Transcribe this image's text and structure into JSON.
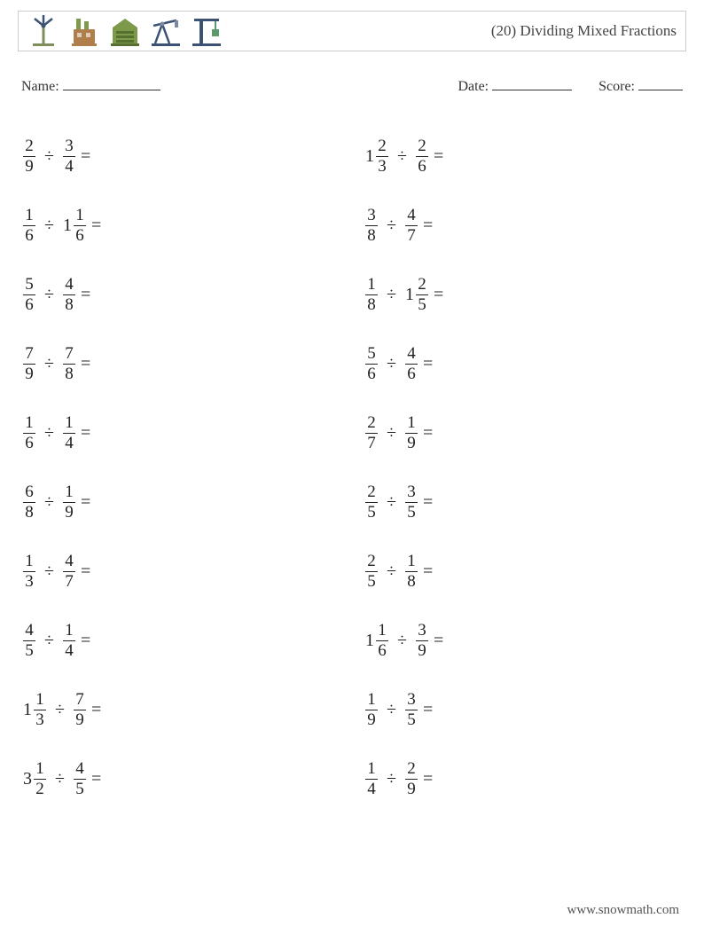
{
  "header": {
    "title": "(20) Dividing Mixed Fractions",
    "icons": [
      {
        "name": "windturbine-icon",
        "primary": "#7d8e5c",
        "accent": "#3b5275"
      },
      {
        "name": "factory-icon",
        "primary": "#b07e4a",
        "accent": "#7d9a4a"
      },
      {
        "name": "warehouse-icon",
        "primary": "#7d9a4a",
        "accent": "#55702f"
      },
      {
        "name": "oilpump-icon",
        "primary": "#3b5275",
        "accent": "#7a8aa3"
      },
      {
        "name": "crane-icon",
        "primary": "#3b5275",
        "accent": "#5c9a6c"
      }
    ]
  },
  "meta": {
    "name_label": "Name:",
    "date_label": "Date:",
    "score_label": "Score:",
    "name_blank_width": 110,
    "date_blank_width": 90,
    "score_blank_width": 50
  },
  "layout": {
    "op_symbol": "÷",
    "eq_symbol": "="
  },
  "problems": {
    "left": [
      {
        "a": {
          "whole": null,
          "num": 2,
          "den": 9
        },
        "b": {
          "whole": null,
          "num": 3,
          "den": 4
        }
      },
      {
        "a": {
          "whole": null,
          "num": 1,
          "den": 6
        },
        "b": {
          "whole": 1,
          "num": 1,
          "den": 6
        }
      },
      {
        "a": {
          "whole": null,
          "num": 5,
          "den": 6
        },
        "b": {
          "whole": null,
          "num": 4,
          "den": 8
        }
      },
      {
        "a": {
          "whole": null,
          "num": 7,
          "den": 9
        },
        "b": {
          "whole": null,
          "num": 7,
          "den": 8
        }
      },
      {
        "a": {
          "whole": null,
          "num": 1,
          "den": 6
        },
        "b": {
          "whole": null,
          "num": 1,
          "den": 4
        }
      },
      {
        "a": {
          "whole": null,
          "num": 6,
          "den": 8
        },
        "b": {
          "whole": null,
          "num": 1,
          "den": 9
        }
      },
      {
        "a": {
          "whole": null,
          "num": 1,
          "den": 3
        },
        "b": {
          "whole": null,
          "num": 4,
          "den": 7
        }
      },
      {
        "a": {
          "whole": null,
          "num": 4,
          "den": 5
        },
        "b": {
          "whole": null,
          "num": 1,
          "den": 4
        }
      },
      {
        "a": {
          "whole": 1,
          "num": 1,
          "den": 3
        },
        "b": {
          "whole": null,
          "num": 7,
          "den": 9
        }
      },
      {
        "a": {
          "whole": 3,
          "num": 1,
          "den": 2
        },
        "b": {
          "whole": null,
          "num": 4,
          "den": 5
        }
      }
    ],
    "right": [
      {
        "a": {
          "whole": 1,
          "num": 2,
          "den": 3
        },
        "b": {
          "whole": null,
          "num": 2,
          "den": 6
        }
      },
      {
        "a": {
          "whole": null,
          "num": 3,
          "den": 8
        },
        "b": {
          "whole": null,
          "num": 4,
          "den": 7
        }
      },
      {
        "a": {
          "whole": null,
          "num": 1,
          "den": 8
        },
        "b": {
          "whole": 1,
          "num": 2,
          "den": 5
        }
      },
      {
        "a": {
          "whole": null,
          "num": 5,
          "den": 6
        },
        "b": {
          "whole": null,
          "num": 4,
          "den": 6
        }
      },
      {
        "a": {
          "whole": null,
          "num": 2,
          "den": 7
        },
        "b": {
          "whole": null,
          "num": 1,
          "den": 9
        }
      },
      {
        "a": {
          "whole": null,
          "num": 2,
          "den": 5
        },
        "b": {
          "whole": null,
          "num": 3,
          "den": 5
        }
      },
      {
        "a": {
          "whole": null,
          "num": 2,
          "den": 5
        },
        "b": {
          "whole": null,
          "num": 1,
          "den": 8
        }
      },
      {
        "a": {
          "whole": 1,
          "num": 1,
          "den": 6
        },
        "b": {
          "whole": null,
          "num": 3,
          "den": 9
        }
      },
      {
        "a": {
          "whole": null,
          "num": 1,
          "den": 9
        },
        "b": {
          "whole": null,
          "num": 3,
          "den": 5
        }
      },
      {
        "a": {
          "whole": null,
          "num": 1,
          "den": 4
        },
        "b": {
          "whole": null,
          "num": 2,
          "den": 9
        }
      }
    ]
  },
  "footer": {
    "text": "www.snowmath.com"
  }
}
